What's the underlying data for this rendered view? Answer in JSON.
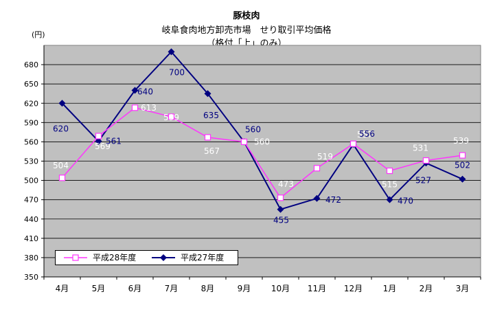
{
  "chart_data": {
    "type": "line",
    "title": "豚枝肉",
    "subtitle": "岐阜食肉地方卸売市場　せり取引平均価格",
    "subtitle2": "（格付「上」のみ）",
    "ylabel": "(円)",
    "xlabel": "",
    "categories": [
      "4月",
      "5月",
      "6月",
      "7月",
      "8月",
      "9月",
      "10月",
      "11月",
      "12月",
      "1月",
      "2月",
      "3月"
    ],
    "ylim": [
      350,
      710
    ],
    "yticks": [
      350,
      380,
      410,
      440,
      470,
      500,
      530,
      560,
      590,
      620,
      650,
      680
    ],
    "grid": true,
    "legend_position": "bottom-left",
    "series": [
      {
        "name": "平成28年度",
        "color": "#ff33ff",
        "marker": "square-open",
        "label_color": "#ffffff",
        "values": [
          504,
          569,
          613,
          599,
          567,
          560,
          473,
          519,
          557,
          515,
          531,
          539
        ]
      },
      {
        "name": "平成27年度",
        "color": "#000080",
        "marker": "diamond-filled",
        "label_color": "#000080",
        "values": [
          620,
          561,
          640,
          700,
          635,
          560,
          455,
          472,
          556,
          470,
          527,
          502
        ]
      }
    ],
    "plot_background": "#c0c0c0"
  }
}
